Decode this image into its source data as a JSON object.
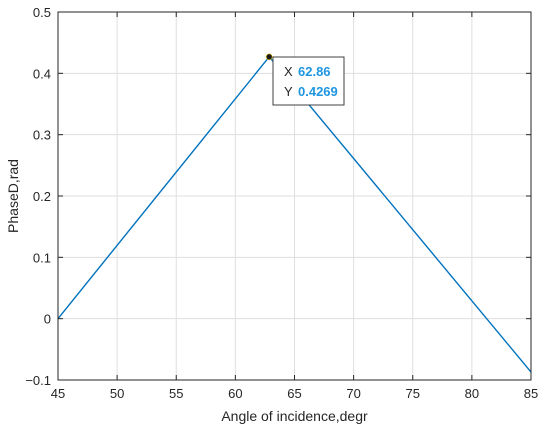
{
  "chart_data": {
    "type": "line",
    "xlabel": "Angle of incidence,degr",
    "ylabel": "PhaseD,rad",
    "xlim": [
      45,
      85
    ],
    "ylim": [
      -0.1,
      0.5
    ],
    "xticks": [
      45,
      50,
      55,
      60,
      65,
      70,
      75,
      80,
      85
    ],
    "yticks": [
      -0.1,
      0,
      0.1,
      0.2,
      0.3,
      0.4,
      0.5
    ],
    "xtick_labels": [
      "45",
      "50",
      "55",
      "60",
      "65",
      "70",
      "75",
      "80",
      "85"
    ],
    "ytick_labels": [
      "−0.1",
      "0",
      "0.1",
      "0.2",
      "0.3",
      "0.4",
      "0.5"
    ],
    "grid": true,
    "series": [
      {
        "color": "#0072BD",
        "x": [
          45,
          62.86,
          85
        ],
        "y": [
          0,
          0.4269,
          -0.087
        ]
      }
    ],
    "datatip": {
      "x_label": "X",
      "x_value": "62.86",
      "y_label": "Y",
      "y_value": "0.4269",
      "x": 62.86,
      "y": 0.4269
    }
  }
}
